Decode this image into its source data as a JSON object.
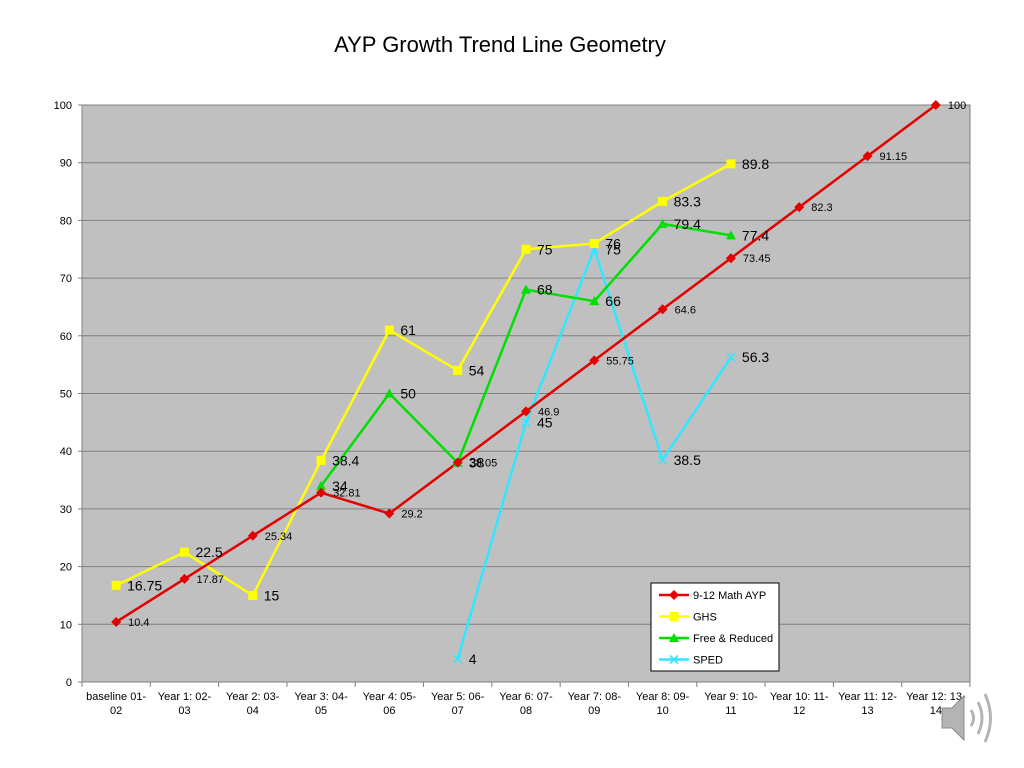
{
  "chart_data": {
    "type": "line",
    "title": "AYP Growth Trend Line Geometry",
    "xlabel": "",
    "ylabel": "",
    "ylim": [
      0,
      100
    ],
    "y_ticks": [
      0,
      10,
      20,
      30,
      40,
      50,
      60,
      70,
      80,
      90,
      100
    ],
    "grid": true,
    "legend_position": "bottom-right",
    "categories": [
      [
        "baseline 01-",
        "02"
      ],
      [
        "Year 1: 02-",
        "03"
      ],
      [
        "Year 2: 03-",
        "04"
      ],
      [
        "Year 3: 04-",
        "05"
      ],
      [
        "Year 4: 05-",
        "06"
      ],
      [
        "Year 5: 06-",
        "07"
      ],
      [
        "Year 6: 07-",
        "08"
      ],
      [
        "Year 7: 08-",
        "09"
      ],
      [
        "Year 8: 09-",
        "10"
      ],
      [
        "Year 9: 10-",
        "11"
      ],
      [
        "Year 10: 11-",
        "12"
      ],
      [
        "Year 11: 12-",
        "13"
      ],
      [
        "Year 12: 13-",
        "14"
      ]
    ],
    "series": [
      {
        "name": "9-12 Math AYP",
        "color": "#e30000",
        "marker": "diamond",
        "label_size": "small",
        "values": [
          10.4,
          17.87,
          25.34,
          32.81,
          29.2,
          38.05,
          46.9,
          55.75,
          64.6,
          73.45,
          82.3,
          91.15,
          100
        ]
      },
      {
        "name": "GHS",
        "color": "#ffff00",
        "marker": "square",
        "label_size": "big",
        "values": [
          16.75,
          22.5,
          15,
          38.4,
          61,
          54,
          75,
          76,
          83.3,
          89.8,
          null,
          null,
          null
        ]
      },
      {
        "name": "Free & Reduced",
        "color": "#00e000",
        "marker": "triangle",
        "label_size": "big",
        "values": [
          null,
          null,
          null,
          34,
          50,
          38,
          68,
          66,
          79.4,
          77.4,
          null,
          null,
          null
        ]
      },
      {
        "name": "SPED",
        "color": "#33e6ff",
        "marker": "x",
        "label_size": "big",
        "values": [
          null,
          null,
          null,
          null,
          null,
          4,
          45,
          75,
          38.5,
          56.3,
          null,
          null,
          null
        ]
      }
    ]
  },
  "ui": {
    "speaker_icon": "speaker-icon",
    "plot_background": "#c0c0c0"
  }
}
